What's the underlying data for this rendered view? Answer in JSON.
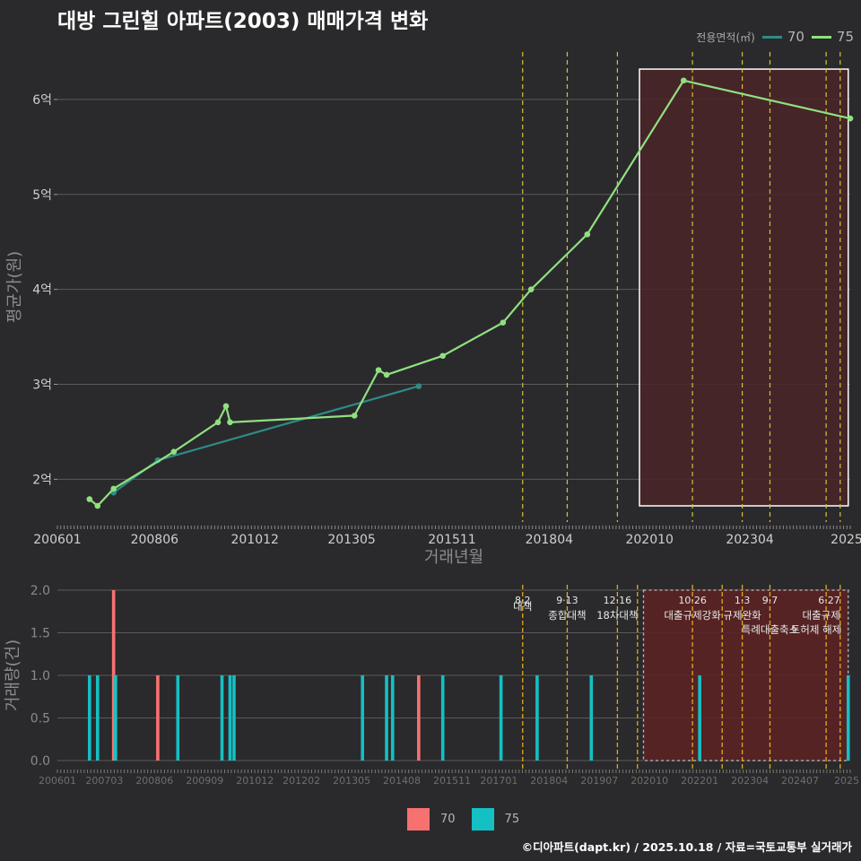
{
  "title": "대방 그린힐 아파트(2003) 매매가격 변화",
  "footer": "©디아파트(dapt.kr) / 2025.10.18 / 자료=국토교통부 실거래가",
  "colors": {
    "background": "#2a2a2c",
    "grid": "#5a5a5c",
    "line70": "#2e8b87",
    "line75": "#90e080",
    "bar70": "#f87171",
    "bar75": "#14c0c4",
    "policy": "#e6a817",
    "policy_light": "#d4c23a",
    "highlight_fill": "#4a2527",
    "bottom_highlight_fill": "#5a2224"
  },
  "legend_top": {
    "title": "전용면적(㎡)",
    "items": [
      {
        "label": "70",
        "color": "#2e8b87"
      },
      {
        "label": "75",
        "color": "#90e080"
      }
    ]
  },
  "legend_bottom": {
    "items": [
      {
        "label": "70",
        "color": "#f87171"
      },
      {
        "label": "75",
        "color": "#14c0c4"
      }
    ]
  },
  "chart_data": [
    {
      "type": "line",
      "title": "대방 그린힐 아파트(2003) 매매가격 변화",
      "xlabel": "거래년월",
      "ylabel": "평균가(원)",
      "ylim": [
        1.55,
        6.5
      ],
      "xlim": [
        2006.0,
        2025.75
      ],
      "x_ticks": [
        {
          "label": "200601",
          "value": 2006.0
        },
        {
          "label": "200806",
          "value": 2008.42
        },
        {
          "label": "201012",
          "value": 2010.92
        },
        {
          "label": "201305",
          "value": 2013.33
        },
        {
          "label": "201511",
          "value": 2015.83
        },
        {
          "label": "201804",
          "value": 2018.25
        },
        {
          "label": "202010",
          "value": 2020.75
        },
        {
          "label": "202304",
          "value": 2023.25
        },
        {
          "label": "2025",
          "value": 2025.67
        }
      ],
      "y_ticks": [
        {
          "label": "2억",
          "value": 2
        },
        {
          "label": "3억",
          "value": 3
        },
        {
          "label": "4억",
          "value": 4
        },
        {
          "label": "5억",
          "value": 5
        },
        {
          "label": "6억",
          "value": 6
        }
      ],
      "series": [
        {
          "name": "70",
          "points": [
            [
              2007.4,
              1.86
            ],
            [
              2008.5,
              2.2
            ],
            [
              2015.0,
              2.98
            ]
          ]
        },
        {
          "name": "75",
          "points": [
            [
              2006.8,
              1.79
            ],
            [
              2007.0,
              1.72
            ],
            [
              2007.4,
              1.9
            ],
            [
              2008.9,
              2.29
            ],
            [
              2010.0,
              2.6
            ],
            [
              2010.2,
              2.77
            ],
            [
              2010.3,
              2.6
            ],
            [
              2013.4,
              2.67
            ],
            [
              2014.0,
              3.15
            ],
            [
              2014.2,
              3.1
            ],
            [
              2015.6,
              3.3
            ],
            [
              2017.1,
              3.65
            ],
            [
              2017.8,
              4.0
            ],
            [
              2019.2,
              4.58
            ],
            [
              2021.6,
              6.2
            ],
            [
              2025.75,
              5.8
            ]
          ]
        }
      ],
      "policy_lines": [
        2017.59,
        2018.7,
        2019.95,
        2021.82,
        2023.06,
        2023.75,
        2025.15,
        2025.5
      ],
      "highlight_range": [
        2020.5,
        2025.7
      ],
      "highlight_ylim": [
        1.72,
        6.32
      ]
    },
    {
      "type": "bar",
      "xlabel": "",
      "ylabel": "거래량(건)",
      "ylim": [
        0,
        2.0
      ],
      "xlim": [
        2006.0,
        2025.75
      ],
      "x_ticks": [
        {
          "label": "200601",
          "value": 2006.0
        },
        {
          "label": "200703",
          "value": 2007.17
        },
        {
          "label": "200806",
          "value": 2008.42
        },
        {
          "label": "200909",
          "value": 2009.67
        },
        {
          "label": "201012",
          "value": 2010.92
        },
        {
          "label": "201202",
          "value": 2012.08
        },
        {
          "label": "201305",
          "value": 2013.33
        },
        {
          "label": "201408",
          "value": 2014.58
        },
        {
          "label": "201511",
          "value": 2015.83
        },
        {
          "label": "201701",
          "value": 2017.0
        },
        {
          "label": "201804",
          "value": 2018.25
        },
        {
          "label": "201907",
          "value": 2019.5
        },
        {
          "label": "202010",
          "value": 2020.75
        },
        {
          "label": "202201",
          "value": 2022.0
        },
        {
          "label": "202304",
          "value": 2023.25
        },
        {
          "label": "202407",
          "value": 2024.5
        },
        {
          "label": "2025",
          "value": 2025.67
        }
      ],
      "y_ticks": [
        {
          "label": "0.0",
          "value": 0
        },
        {
          "label": "0.5",
          "value": 0.5
        },
        {
          "label": "1.0",
          "value": 1.0
        },
        {
          "label": "1.5",
          "value": 1.5
        },
        {
          "label": "2.0",
          "value": 2.0
        }
      ],
      "series": [
        {
          "name": "70",
          "bars": [
            [
              2007.4,
              2
            ],
            [
              2008.5,
              1
            ],
            [
              2015.0,
              1
            ]
          ]
        },
        {
          "name": "75",
          "bars": [
            [
              2006.8,
              1
            ],
            [
              2007.0,
              1
            ],
            [
              2007.45,
              1
            ],
            [
              2009.0,
              1
            ],
            [
              2010.1,
              1
            ],
            [
              2010.3,
              1
            ],
            [
              2010.4,
              1
            ],
            [
              2013.6,
              1
            ],
            [
              2014.2,
              1
            ],
            [
              2014.35,
              1
            ],
            [
              2015.6,
              1
            ],
            [
              2017.05,
              1
            ],
            [
              2017.95,
              1
            ],
            [
              2019.3,
              1
            ],
            [
              2022.0,
              1
            ],
            [
              2025.7,
              1
            ]
          ]
        }
      ],
      "policy_lines": [
        2017.59,
        2018.7,
        2019.95,
        2020.45,
        2021.82,
        2022.56,
        2023.06,
        2023.75,
        2025.15,
        2025.5
      ],
      "highlight_range": [
        2020.6,
        2025.7
      ],
      "annotations": [
        {
          "date": "8·2",
          "label": "대책",
          "x": 2017.59
        },
        {
          "date": "9·13",
          "label": "종합대책",
          "x": 2018.7
        },
        {
          "date": "12·16",
          "label": "18차대책",
          "x": 2019.95
        },
        {
          "date": "10·26",
          "label": "대출규제강화",
          "x": 2021.82
        },
        {
          "date": "1·3",
          "label": "규제완화",
          "x": 2023.06
        },
        {
          "date": "9·7",
          "label": "특례대출축소",
          "x": 2023.75
        },
        {
          "date": "",
          "label": "토허제 해제",
          "x": 2024.9
        },
        {
          "date": "6·27",
          "label": "대출규제",
          "x": 2025.5
        }
      ]
    }
  ]
}
